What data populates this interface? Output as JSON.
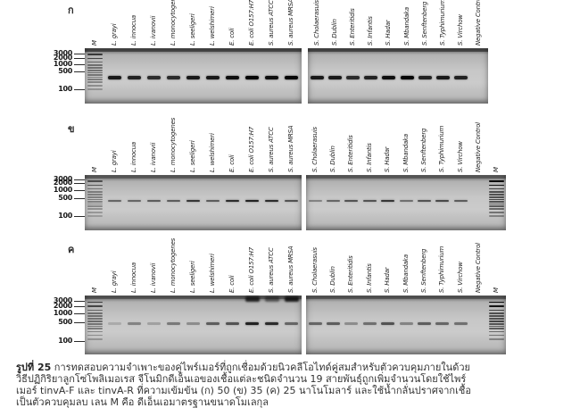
{
  "caption": {
    "label": "รูปที่ 25",
    "line1": "การทดสอบความจำเพาะของคู่ไพร์เมอร์ที่ถูกเชื่อมด้วยนิวคลีโอไทด์คู่สมสำหรับตัวควบคุมภายในด้วย",
    "line2": "วิธีปฏิกิริยาลูกโซ่โพลิเมอเรส จีโนมิกดีเอ็นเอของเชื้อแต่ละชนิดจำนวน 19 สายพันธุ์ถูกเพิ่มจำนวนโดยใช้ไพร์",
    "line3": "เมอร์ tinvA-F และ tinvA-R ที่ความเข้มข้น (ก) 50 (ข) 35 (ค) 25 นาโนโมลาร์ และใช้น้ำกลั่นปราศจากเชื้อ",
    "line4": "เป็นตัวควบคุมลบ เลน M คือ ดีเอ็นเอมาตรฐานขนาดโมเลกุล"
  },
  "gel_figure": {
    "panels": [
      {
        "label": "ก",
        "markers": [
          "3000",
          "2000",
          "1000",
          "500",
          "100"
        ],
        "lanes": [
          {
            "label": "M",
            "type": "ladder",
            "intensity": 0.6
          },
          {
            "label": "L. grayi",
            "band": 0.9
          },
          {
            "label": "L. innocua",
            "band": 0.85
          },
          {
            "label": "L. ivanovii",
            "band": 0.8
          },
          {
            "label": "L. monocytogenes",
            "band": 0.8
          },
          {
            "label": "L. seeligeri",
            "band": 0.9
          },
          {
            "label": "L. welshimeri",
            "band": 0.9
          },
          {
            "label": "E. coli",
            "band": 0.95
          },
          {
            "label": "E. coli O157:H7",
            "band": 1.0
          },
          {
            "label": "S. aureus ATCC",
            "band": 0.95
          },
          {
            "label": "S. aureus MRSA",
            "band": 1.0
          },
          {
            "label": "S. Cholaerasuis",
            "band": 0.9
          },
          {
            "label": "S. Dublin",
            "band": 0.9
          },
          {
            "label": "S. Enteritidis",
            "band": 0.8
          },
          {
            "label": "S. Infantis",
            "band": 0.85
          },
          {
            "label": "S. Hadar",
            "band": 0.95
          },
          {
            "label": "S. Mbandaka",
            "band": 1.0
          },
          {
            "label": "S. Senftenberg",
            "band": 0.85
          },
          {
            "label": "S. Typhimurium",
            "band": 0.9
          },
          {
            "label": "S. Virchow",
            "band": 0.85
          },
          {
            "label": "Negative Control",
            "band": 0
          }
        ]
      },
      {
        "label": "ข",
        "markers": [
          "3000",
          "2000",
          "1000",
          "500",
          "100"
        ],
        "lanes": [
          {
            "label": "M",
            "type": "ladder",
            "intensity": 0.5
          },
          {
            "label": "L. grayi",
            "band": 0.5
          },
          {
            "label": "L. innocua",
            "band": 0.5
          },
          {
            "label": "L. ivanovii",
            "band": 0.55
          },
          {
            "label": "L. monocytogenes",
            "band": 0.55
          },
          {
            "label": "L. seeligeri",
            "band": 0.75
          },
          {
            "label": "L. welshimeri",
            "band": 0.55
          },
          {
            "label": "E. coli",
            "band": 0.8
          },
          {
            "label": "E. coli O157:H7",
            "band": 0.85
          },
          {
            "label": "S. aureus ATCC",
            "band": 0.8
          },
          {
            "label": "S. aureus MRSA",
            "band": 0.6
          },
          {
            "label": "S. Cholaerasuis",
            "band": 0.35
          },
          {
            "label": "S. Dublin",
            "band": 0.5
          },
          {
            "label": "S. Enteritidis",
            "band": 0.6
          },
          {
            "label": "S. Infantis",
            "band": 0.6
          },
          {
            "label": "S. Hadar",
            "band": 0.75
          },
          {
            "label": "S. Mbandaka",
            "band": 0.45
          },
          {
            "label": "S. Senftenberg",
            "band": 0.6
          },
          {
            "label": "S. Typhimurium",
            "band": 0.65
          },
          {
            "label": "S. Virchow",
            "band": 0.55
          },
          {
            "label": "Negative Control",
            "band": 0
          },
          {
            "label": "M",
            "type": "ladder",
            "intensity": 0.85
          }
        ]
      },
      {
        "label": "ค",
        "markers": [
          "3000",
          "2000",
          "1000",
          "500",
          "100"
        ],
        "lanes": [
          {
            "label": "M",
            "type": "ladder",
            "intensity": 0.6
          },
          {
            "label": "L. grayi",
            "band": 0.15
          },
          {
            "label": "L. innocua",
            "band": 0.35
          },
          {
            "label": "L. ivanovii",
            "band": 0.2
          },
          {
            "label": "L. monocytogenes",
            "band": 0.4
          },
          {
            "label": "L. seeligeri",
            "band": 0.3
          },
          {
            "label": "L. welshimeri",
            "band": 0.55
          },
          {
            "label": "E. coli",
            "band": 0.6
          },
          {
            "label": "E. coli O157:H7",
            "band": 0.85,
            "well": 0.85
          },
          {
            "label": "S. aureus ATCC",
            "band": 0.8,
            "well": 0.5
          },
          {
            "label": "S. aureus MRSA",
            "band": 0.5,
            "well": 0.9
          },
          {
            "label": "S. Cholaerasuis",
            "band": 0.5
          },
          {
            "label": "S. Dublin",
            "band": 0.55
          },
          {
            "label": "S. Enteritidis",
            "band": 0.3
          },
          {
            "label": "S. Infantis",
            "band": 0.45
          },
          {
            "label": "S. Hadar",
            "band": 0.6
          },
          {
            "label": "S. Mbandaka",
            "band": 0.35
          },
          {
            "label": "S. Senftenberg",
            "band": 0.55
          },
          {
            "label": "S. Typhimurium",
            "band": 0.5
          },
          {
            "label": "S. Virchow",
            "band": 0.45
          },
          {
            "label": "Negative Control",
            "band": 0
          },
          {
            "label": "M",
            "type": "ladder",
            "intensity": 0.85
          }
        ]
      }
    ]
  }
}
